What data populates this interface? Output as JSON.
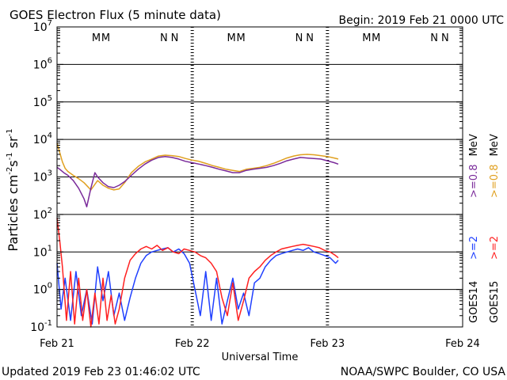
{
  "chart_data": {
    "type": "line",
    "title": "GOES Electron Flux (5 minute data)",
    "begin_label": "Begin: 2019 Feb 21 0000 UTC",
    "xlabel": "Universal Time",
    "ylabel": "Particles cm⁻²s⁻¹sr⁻¹",
    "ylabel_parts": {
      "main": "Particles cm",
      "exp1": "-2",
      "mid": "s",
      "exp2": "-1",
      "end": " sr",
      "exp3": "-1"
    },
    "x_unit": "days since 2019 Feb 21 0000 UTC",
    "xlim": [
      0,
      3
    ],
    "ylim_log10": [
      -1,
      7
    ],
    "x_ticks": [
      {
        "value": 0,
        "label": "Feb 21"
      },
      {
        "value": 1,
        "label": "Feb 22"
      },
      {
        "value": 2,
        "label": "Feb 23"
      },
      {
        "value": 3,
        "label": "Feb 24"
      }
    ],
    "y_ticks": [
      {
        "exp": -1,
        "base": "10",
        "sup": "-1"
      },
      {
        "exp": 0,
        "base": "10",
        "sup": "0"
      },
      {
        "exp": 1,
        "base": "10",
        "sup": "1"
      },
      {
        "exp": 2,
        "base": "10",
        "sup": "2"
      },
      {
        "exp": 3,
        "base": "10",
        "sup": "3"
      },
      {
        "exp": 4,
        "base": "10",
        "sup": "4"
      },
      {
        "exp": 5,
        "base": "10",
        "sup": "5"
      },
      {
        "exp": 6,
        "base": "10",
        "sup": "6"
      },
      {
        "exp": 7,
        "base": "10",
        "sup": "7"
      }
    ],
    "threshold": {
      "value": 1000,
      "style": "dashed"
    },
    "markers": [
      {
        "text": "M",
        "x": 0.29,
        "color": "#2020c0"
      },
      {
        "text": "M",
        "x": 0.36,
        "color": "#d01010"
      },
      {
        "text": "N",
        "x": 0.79,
        "color": "#2020c0"
      },
      {
        "text": "N",
        "x": 0.87,
        "color": "#d01010"
      },
      {
        "text": "M",
        "x": 1.29,
        "color": "#2020c0"
      },
      {
        "text": "M",
        "x": 1.36,
        "color": "#d01010"
      },
      {
        "text": "N",
        "x": 1.79,
        "color": "#2020c0"
      },
      {
        "text": "N",
        "x": 1.87,
        "color": "#d01010"
      },
      {
        "text": "M",
        "x": 2.29,
        "color": "#2020c0"
      },
      {
        "text": "M",
        "x": 2.36,
        "color": "#d01010"
      },
      {
        "text": "N",
        "x": 2.79,
        "color": "#2020c0"
      },
      {
        "text": "N",
        "x": 2.87,
        "color": "#d01010"
      }
    ],
    "legend": {
      "placement": "right",
      "groups": [
        {
          "sat": "GOES14",
          "sat_color": "#000000",
          "entries": [
            {
              "label": ">=2",
              "suffix": "",
              "color": "#2040ff"
            },
            {
              "label": ">=0.8",
              "suffix": "MeV",
              "color": "#7a2a9a"
            }
          ]
        },
        {
          "sat": "GOES15",
          "sat_color": "#000000",
          "entries": [
            {
              "label": ">=2",
              "suffix": "",
              "color": "#ff2020"
            },
            {
              "label": ">=0.8",
              "suffix": "MeV",
              "color": "#e0a020"
            }
          ]
        }
      ]
    },
    "series": [
      {
        "name": "GOES15 >=0.8 MeV",
        "color": "#e0a020",
        "x": [
          0.0,
          0.02,
          0.04,
          0.06,
          0.08,
          0.12,
          0.16,
          0.2,
          0.25,
          0.3,
          0.34,
          0.38,
          0.42,
          0.46,
          0.5,
          0.55,
          0.6,
          0.65,
          0.7,
          0.75,
          0.8,
          0.85,
          0.9,
          0.95,
          1.0,
          1.05,
          1.1,
          1.15,
          1.2,
          1.25,
          1.3,
          1.35,
          1.4,
          1.45,
          1.5,
          1.55,
          1.6,
          1.65,
          1.7,
          1.75,
          1.8,
          1.85,
          1.9,
          1.95,
          2.0,
          2.05,
          2.08
        ],
        "y": [
          8000,
          4500,
          2500,
          1700,
          1400,
          1100,
          900,
          700,
          450,
          800,
          600,
          500,
          450,
          480,
          700,
          1300,
          1900,
          2500,
          3000,
          3600,
          3800,
          3700,
          3500,
          3100,
          2800,
          2600,
          2300,
          2000,
          1800,
          1600,
          1500,
          1400,
          1600,
          1700,
          1800,
          2000,
          2300,
          2700,
          3200,
          3600,
          3900,
          4000,
          3900,
          3700,
          3500,
          3200,
          3000
        ]
      },
      {
        "name": "GOES14 >=0.8 MeV",
        "color": "#7a2a9a",
        "x": [
          0.0,
          0.02,
          0.05,
          0.08,
          0.12,
          0.16,
          0.2,
          0.22,
          0.25,
          0.28,
          0.3,
          0.34,
          0.38,
          0.42,
          0.46,
          0.5,
          0.55,
          0.6,
          0.65,
          0.7,
          0.75,
          0.8,
          0.85,
          0.9,
          0.95,
          1.0,
          1.05,
          1.1,
          1.15,
          1.2,
          1.25,
          1.3,
          1.35,
          1.4,
          1.45,
          1.5,
          1.55,
          1.6,
          1.65,
          1.7,
          1.75,
          1.8,
          1.85,
          1.9,
          1.95,
          2.0,
          2.05,
          2.08
        ],
        "y": [
          1800,
          1600,
          1300,
          1100,
          800,
          500,
          260,
          160,
          500,
          1300,
          1000,
          700,
          550,
          520,
          600,
          750,
          1100,
          1600,
          2200,
          2800,
          3300,
          3500,
          3300,
          3000,
          2600,
          2400,
          2200,
          2000,
          1800,
          1600,
          1450,
          1300,
          1300,
          1500,
          1600,
          1700,
          1800,
          2000,
          2300,
          2700,
          3000,
          3300,
          3200,
          3100,
          3000,
          2700,
          2400,
          2200
        ]
      },
      {
        "name": "GOES14 >=2 MeV",
        "color": "#2040ff",
        "x": [
          0.0,
          0.03,
          0.06,
          0.1,
          0.14,
          0.18,
          0.22,
          0.26,
          0.3,
          0.34,
          0.38,
          0.42,
          0.46,
          0.5,
          0.54,
          0.58,
          0.62,
          0.66,
          0.7,
          0.74,
          0.78,
          0.82,
          0.86,
          0.9,
          0.94,
          0.98,
          1.02,
          1.06,
          1.1,
          1.14,
          1.18,
          1.22,
          1.26,
          1.3,
          1.34,
          1.38,
          1.42,
          1.46,
          1.5,
          1.54,
          1.58,
          1.62,
          1.66,
          1.7,
          1.74,
          1.78,
          1.82,
          1.86,
          1.9,
          1.94,
          1.98,
          2.02,
          2.06,
          2.08
        ],
        "y": [
          5,
          0.3,
          2,
          0.15,
          3,
          0.2,
          1,
          0.12,
          4,
          0.5,
          3,
          0.2,
          0.8,
          0.15,
          0.6,
          2,
          5,
          8,
          10,
          11,
          12,
          13,
          10,
          12,
          9,
          5,
          1,
          0.2,
          3,
          0.15,
          2,
          0.12,
          0.5,
          2,
          0.3,
          0.8,
          0.2,
          1.5,
          2,
          4,
          6,
          8,
          9,
          10,
          11,
          12,
          11,
          13,
          10,
          9,
          8,
          7,
          5,
          6
        ]
      },
      {
        "name": "GOES15 >=2 MeV",
        "color": "#ff2020",
        "x": [
          0.0,
          0.02,
          0.04,
          0.07,
          0.1,
          0.13,
          0.16,
          0.19,
          0.22,
          0.25,
          0.28,
          0.31,
          0.34,
          0.37,
          0.4,
          0.43,
          0.46,
          0.5,
          0.54,
          0.58,
          0.62,
          0.66,
          0.7,
          0.74,
          0.78,
          0.82,
          0.86,
          0.9,
          0.94,
          0.98,
          1.02,
          1.06,
          1.1,
          1.14,
          1.18,
          1.22,
          1.26,
          1.3,
          1.34,
          1.38,
          1.42,
          1.46,
          1.5,
          1.54,
          1.58,
          1.62,
          1.66,
          1.7,
          1.74,
          1.78,
          1.82,
          1.86,
          1.9,
          1.94,
          1.98,
          2.02,
          2.06,
          2.08
        ],
        "y": [
          80,
          20,
          4,
          0.15,
          3,
          0.12,
          2,
          0.15,
          1,
          0.1,
          0.8,
          0.12,
          2,
          0.15,
          0.7,
          0.12,
          0.3,
          2,
          6,
          9,
          12,
          14,
          12,
          15,
          11,
          13,
          10,
          9,
          12,
          11,
          10,
          8,
          7,
          5,
          3,
          0.6,
          0.2,
          1.5,
          0.15,
          0.5,
          2,
          3,
          4,
          6,
          8,
          10,
          12,
          13,
          14,
          15,
          16,
          15,
          14,
          13,
          11,
          10,
          8,
          7
        ]
      }
    ]
  },
  "footer": {
    "updated": "Updated 2019 Feb 23 01:46:02 UTC",
    "credit": "NOAA/SWPC Boulder, CO USA"
  }
}
